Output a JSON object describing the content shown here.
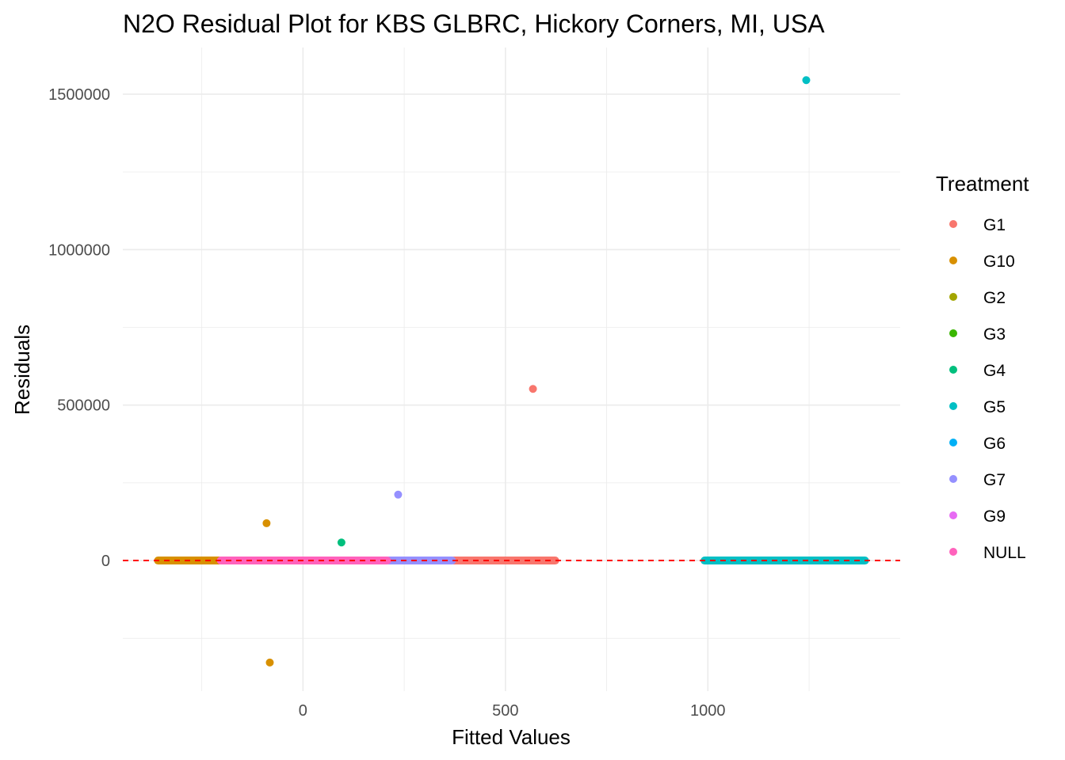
{
  "chart_data": {
    "type": "scatter",
    "title": "N2O Residual Plot for KBS GLBRC, Hickory Corners, MI, USA",
    "xlabel": "Fitted Values",
    "ylabel": "Residuals",
    "xlim": [
      -445,
      1475
    ],
    "ylim": [
      -420000,
      1650000
    ],
    "x_ticks": [
      0,
      500,
      1000
    ],
    "x_tick_labels": [
      "0",
      "500",
      "1000"
    ],
    "y_ticks": [
      0,
      500000,
      1000000,
      1500000
    ],
    "y_tick_labels": [
      "0",
      "500000",
      "1000000",
      "1500000"
    ],
    "grid": true,
    "legend": {
      "title": "Treatment",
      "position": "right"
    },
    "reference_line": {
      "y": 0,
      "color": "#ff0000",
      "style": "dashed"
    },
    "series": [
      {
        "name": "G1",
        "color": "#F8766D",
        "points": [
          [
            568,
            552000
          ]
        ],
        "band": [
          370,
          625
        ]
      },
      {
        "name": "G10",
        "color": "#D89000",
        "points": [
          [
            -90,
            120000
          ],
          [
            -82,
            -328000
          ]
        ],
        "band": [
          -360,
          -205
        ]
      },
      {
        "name": "G2",
        "color": "#A3A500",
        "points": [],
        "band": []
      },
      {
        "name": "G3",
        "color": "#39B600",
        "points": [],
        "band": []
      },
      {
        "name": "G4",
        "color": "#00BF7D",
        "points": [
          [
            95,
            58000
          ]
        ],
        "band": []
      },
      {
        "name": "G5",
        "color": "#00BFC4",
        "points": [
          [
            1243,
            1545000
          ]
        ],
        "band": [
          990,
          1390
        ]
      },
      {
        "name": "G6",
        "color": "#00B0F6",
        "points": [],
        "band": []
      },
      {
        "name": "G7",
        "color": "#9590FF",
        "points": [
          [
            235,
            212000
          ]
        ],
        "band": [
          210,
          370
        ]
      },
      {
        "name": "G9",
        "color": "#E76BF3",
        "points": [],
        "band": []
      },
      {
        "name": "NULL",
        "color": "#FF62BC",
        "points": [],
        "band": [
          -205,
          210
        ]
      }
    ]
  }
}
